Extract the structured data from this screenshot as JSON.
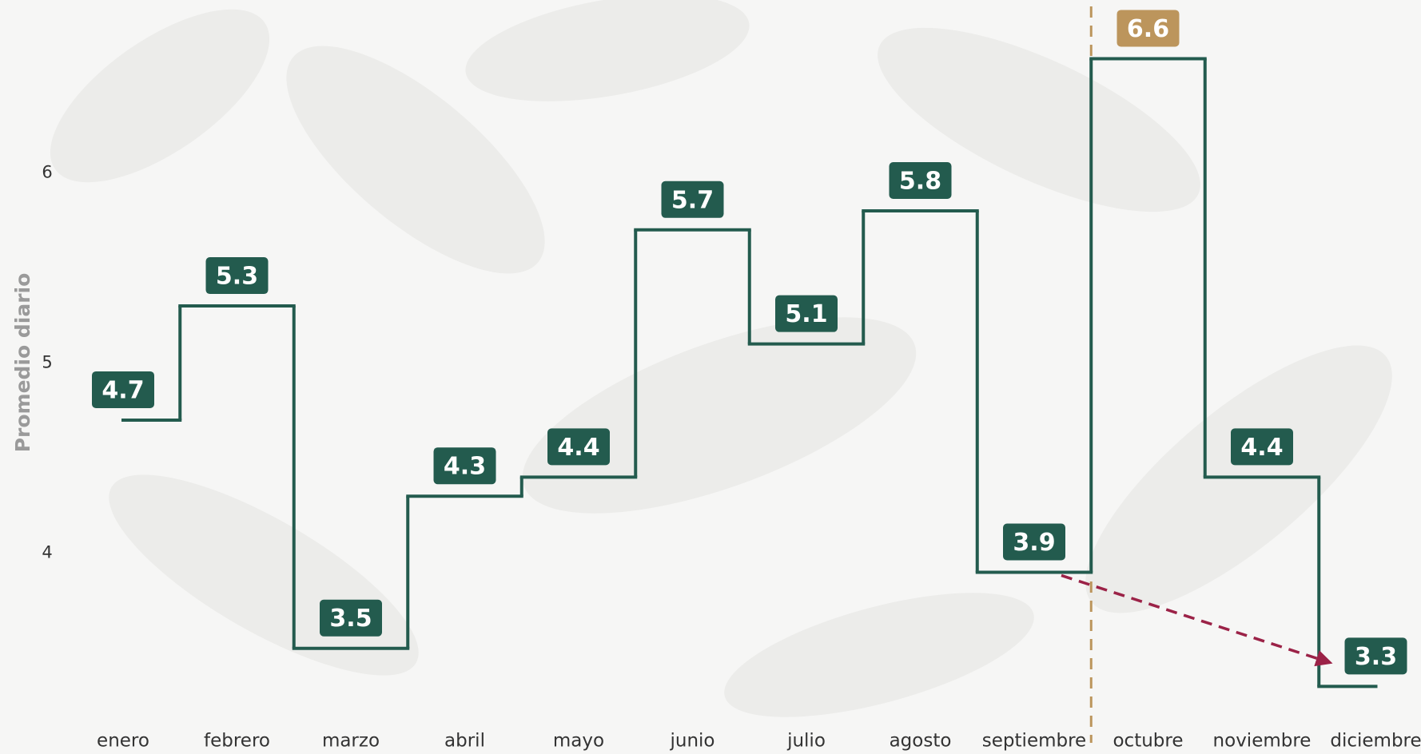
{
  "chart_data": {
    "type": "step",
    "y_axis_label": "Promedio diario",
    "categories": [
      "enero",
      "febrero",
      "marzo",
      "abril",
      "mayo",
      "junio",
      "julio",
      "agosto",
      "septiembre",
      "octubre",
      "noviembre",
      "diciembre"
    ],
    "values": [
      4.7,
      5.3,
      3.5,
      4.3,
      4.4,
      5.7,
      5.1,
      5.8,
      3.9,
      6.6,
      4.4,
      3.3
    ],
    "color": "#235b4e",
    "label_colors": [
      "#235b4e",
      "#235b4e",
      "#235b4e",
      "#235b4e",
      "#235b4e",
      "#235b4e",
      "#235b4e",
      "#235b4e",
      "#235b4e",
      "#bc955c",
      "#235b4e",
      "#235b4e"
    ],
    "ylim": [
      3.1,
      6.9
    ],
    "yticks": [
      4,
      5,
      6
    ],
    "grid": false
  }
}
